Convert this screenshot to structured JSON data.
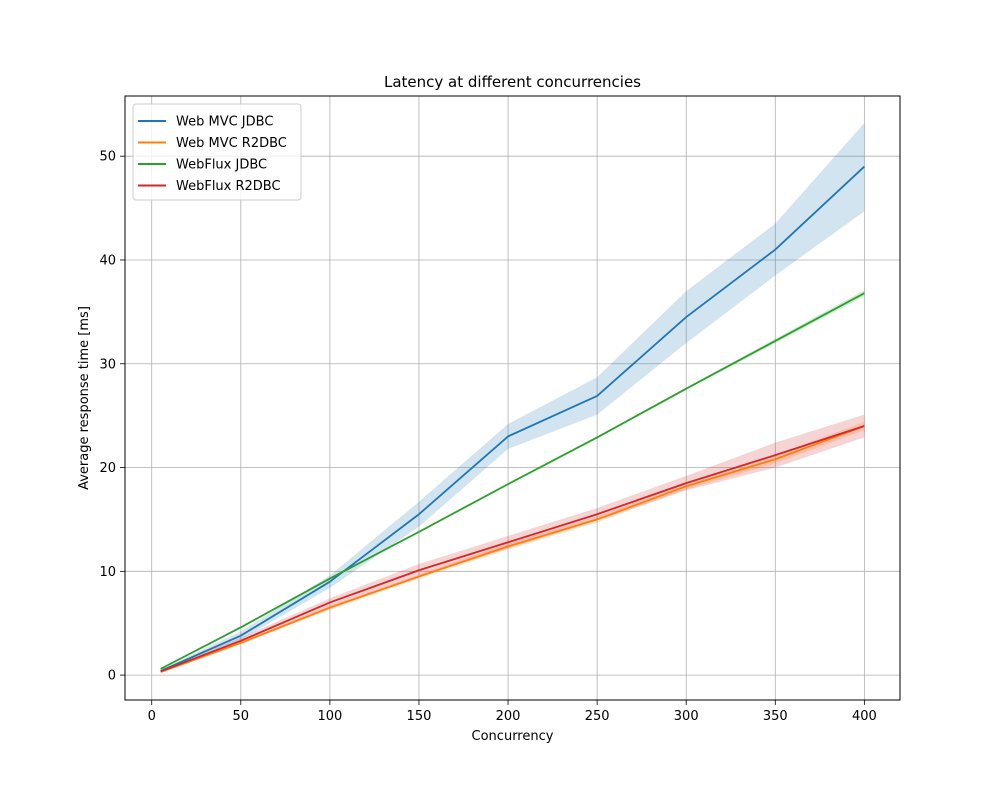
{
  "chart_data": {
    "type": "line",
    "title": "Latency at different concurrencies",
    "xlabel": "Concurrency",
    "ylabel": "Average response time [ms]",
    "xlim": [
      -15,
      420
    ],
    "ylim": [
      -2.4,
      55.8
    ],
    "xticks": [
      0,
      50,
      100,
      150,
      200,
      250,
      300,
      350,
      400
    ],
    "yticks": [
      0,
      10,
      20,
      30,
      40,
      50
    ],
    "grid": true,
    "legend_position": "upper left",
    "x": [
      5,
      50,
      100,
      150,
      200,
      250,
      300,
      350,
      400
    ],
    "series": [
      {
        "name": "Web MVC JDBC",
        "color": "#1f77b4",
        "values": [
          0.4,
          3.8,
          9.0,
          15.5,
          23.0,
          26.9,
          34.5,
          41.0,
          49.0
        ],
        "lower": [
          0.3,
          3.4,
          8.4,
          14.3,
          21.8,
          25.1,
          32.0,
          38.5,
          44.7
        ],
        "upper": [
          0.5,
          4.2,
          9.6,
          16.7,
          24.2,
          28.7,
          37.0,
          43.5,
          53.2
        ]
      },
      {
        "name": "Web MVC R2DBC",
        "color": "#ff7f0e",
        "values": [
          0.3,
          3.1,
          6.5,
          9.5,
          12.4,
          15.0,
          18.2,
          20.8,
          24.0
        ],
        "lower": [
          0.25,
          3.0,
          6.3,
          9.3,
          12.1,
          14.7,
          17.9,
          20.4,
          23.6
        ],
        "upper": [
          0.35,
          3.2,
          6.7,
          9.7,
          12.7,
          15.3,
          18.5,
          21.2,
          24.4
        ]
      },
      {
        "name": "WebFlux JDBC",
        "color": "#2ca02c",
        "values": [
          0.6,
          4.6,
          9.3,
          13.8,
          18.4,
          22.9,
          27.6,
          32.2,
          36.8
        ],
        "lower": [
          0.55,
          4.5,
          9.2,
          13.7,
          18.3,
          22.8,
          27.5,
          32.0,
          36.5
        ],
        "upper": [
          0.65,
          4.7,
          9.4,
          13.9,
          18.5,
          23.0,
          27.7,
          32.4,
          37.1
        ]
      },
      {
        "name": "WebFlux R2DBC",
        "color": "#d62728",
        "values": [
          0.35,
          3.3,
          7.0,
          10.1,
          12.8,
          15.5,
          18.5,
          21.2,
          24.0
        ],
        "lower": [
          0.25,
          3.0,
          6.6,
          9.5,
          12.2,
          14.9,
          17.8,
          20.0,
          22.9
        ],
        "upper": [
          0.45,
          3.6,
          7.4,
          10.7,
          13.4,
          16.1,
          19.2,
          22.4,
          25.1
        ]
      }
    ]
  }
}
